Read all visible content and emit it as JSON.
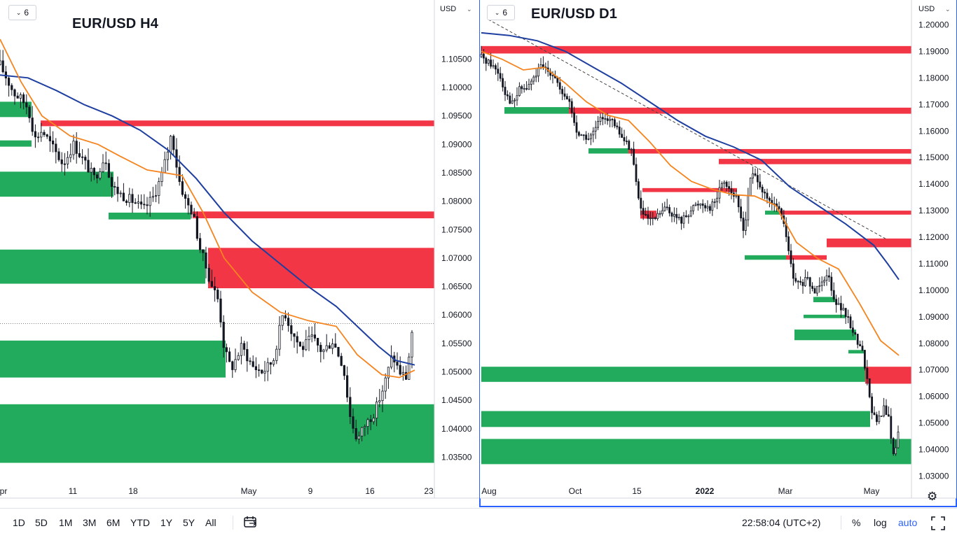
{
  "chart_data": [
    {
      "type": "candlestick",
      "title": "EUR/USD H4",
      "currency": "USD",
      "interval_badge": "6",
      "y_ticks": [
        "1.10500",
        "1.10000",
        "1.09500",
        "1.09000",
        "1.08500",
        "1.08000",
        "1.07500",
        "1.07000",
        "1.06500",
        "1.06000",
        "1.05500",
        "1.05000",
        "1.04500",
        "1.04000",
        "1.03500"
      ],
      "x_ticks": [
        "pr",
        "11",
        "18",
        "May",
        "9",
        "16",
        "23"
      ],
      "ylim": [
        1.0305,
        1.1085
      ],
      "close_points": [
        [
          0,
          1.104
        ],
        [
          10,
          1.1015
        ],
        [
          20,
          1.099
        ],
        [
          30,
          1.098
        ],
        [
          40,
          1.0965
        ],
        [
          50,
          1.091
        ],
        [
          60,
          1.0925
        ],
        [
          75,
          1.0895
        ],
        [
          90,
          1.0865
        ],
        [
          105,
          1.09
        ],
        [
          120,
          1.087
        ],
        [
          135,
          1.084
        ],
        [
          150,
          1.088
        ],
        [
          160,
          1.0825
        ],
        [
          175,
          1.081
        ],
        [
          190,
          1.08
        ],
        [
          205,
          1.0785
        ],
        [
          220,
          1.081
        ],
        [
          232,
          1.085
        ],
        [
          245,
          1.092
        ],
        [
          255,
          1.084
        ],
        [
          265,
          1.08
        ],
        [
          275,
          1.078
        ],
        [
          285,
          1.072
        ],
        [
          300,
          1.066
        ],
        [
          312,
          1.0625
        ],
        [
          320,
          1.054
        ],
        [
          330,
          1.0505
        ],
        [
          345,
          1.0545
        ],
        [
          360,
          1.051
        ],
        [
          375,
          1.05
        ],
        [
          390,
          1.052
        ],
        [
          405,
          1.061
        ],
        [
          415,
          1.0575
        ],
        [
          430,
          1.054
        ],
        [
          445,
          1.056
        ],
        [
          460,
          1.0535
        ],
        [
          475,
          1.0555
        ],
        [
          490,
          1.051
        ],
        [
          500,
          1.042
        ],
        [
          510,
          1.038
        ],
        [
          520,
          1.0405
        ],
        [
          535,
          1.043
        ],
        [
          548,
          1.0475
        ],
        [
          560,
          1.053
        ],
        [
          570,
          1.05
        ],
        [
          580,
          1.049
        ],
        [
          588,
          1.057
        ],
        [
          592,
          1.0605
        ]
      ],
      "ema_fast": [
        [
          0,
          1.1085
        ],
        [
          30,
          1.101
        ],
        [
          60,
          1.095
        ],
        [
          100,
          1.0915
        ],
        [
          140,
          1.09
        ],
        [
          170,
          1.088
        ],
        [
          210,
          1.0855
        ],
        [
          260,
          1.0845
        ],
        [
          290,
          1.078
        ],
        [
          320,
          1.07
        ],
        [
          360,
          1.064
        ],
        [
          400,
          1.0605
        ],
        [
          440,
          1.059
        ],
        [
          480,
          1.058
        ],
        [
          510,
          1.053
        ],
        [
          545,
          1.0495
        ],
        [
          570,
          1.049
        ],
        [
          592,
          1.0503
        ]
      ],
      "ema_slow": [
        [
          0,
          1.1022
        ],
        [
          40,
          1.1017
        ],
        [
          80,
          1.0995
        ],
        [
          120,
          1.097
        ],
        [
          160,
          1.095
        ],
        [
          200,
          1.0925
        ],
        [
          240,
          1.089
        ],
        [
          280,
          1.084
        ],
        [
          320,
          1.078
        ],
        [
          360,
          1.073
        ],
        [
          400,
          1.069
        ],
        [
          440,
          1.065
        ],
        [
          480,
          1.0615
        ],
        [
          510,
          1.058
        ],
        [
          540,
          1.0545
        ],
        [
          565,
          1.052
        ],
        [
          592,
          1.0512
        ]
      ],
      "price_line": 1.0585,
      "supply_zones": [
        {
          "x0": 58,
          "x1": 620,
          "y0": 1.0942,
          "y1": 1.0932
        },
        {
          "x0": 275,
          "x1": 620,
          "y0": 1.0782,
          "y1": 1.077
        },
        {
          "x0": 297,
          "x1": 620,
          "y0": 1.0718,
          "y1": 1.0647
        }
      ],
      "demand_zones": [
        {
          "x0": 0,
          "x1": 45,
          "y0": 1.0975,
          "y1": 1.0948
        },
        {
          "x0": 0,
          "x1": 45,
          "y0": 1.0907,
          "y1": 1.0896
        },
        {
          "x0": 0,
          "x1": 162,
          "y0": 1.0852,
          "y1": 1.0808
        },
        {
          "x0": 155,
          "x1": 272,
          "y0": 1.078,
          "y1": 1.0768
        },
        {
          "x0": 0,
          "x1": 293,
          "y0": 1.0715,
          "y1": 1.0655
        },
        {
          "x0": 0,
          "x1": 322,
          "y0": 1.0555,
          "y1": 1.049
        },
        {
          "x0": 0,
          "x1": 620,
          "y0": 1.0443,
          "y1": 1.034
        }
      ]
    },
    {
      "type": "candlestick",
      "title": "EUR/USD D1",
      "currency": "USD",
      "interval_badge": "6",
      "y_ticks": [
        "1.20000",
        "1.19000",
        "1.18000",
        "1.17000",
        "1.16000",
        "1.15000",
        "1.14000",
        "1.13000",
        "1.12000",
        "1.11000",
        "1.10000",
        "1.09000",
        "1.08000",
        "1.07000",
        "1.06000",
        "1.05000",
        "1.04000",
        "1.03000"
      ],
      "x_ticks": [
        "Aug",
        "Oct",
        "15",
        "2022",
        "Mar",
        "May"
      ],
      "ylim": [
        1.0275,
        1.2025
      ],
      "close_points": [
        [
          0,
          1.188
        ],
        [
          15,
          1.185
        ],
        [
          25,
          1.182
        ],
        [
          35,
          1.174
        ],
        [
          45,
          1.17
        ],
        [
          55,
          1.176
        ],
        [
          65,
          1.176
        ],
        [
          75,
          1.18
        ],
        [
          85,
          1.184
        ],
        [
          95,
          1.183
        ],
        [
          105,
          1.181
        ],
        [
          115,
          1.173
        ],
        [
          125,
          1.172
        ],
        [
          135,
          1.16
        ],
        [
          145,
          1.158
        ],
        [
          155,
          1.157
        ],
        [
          165,
          1.162
        ],
        [
          175,
          1.166
        ],
        [
          185,
          1.164
        ],
        [
          195,
          1.16
        ],
        [
          205,
          1.156
        ],
        [
          215,
          1.153
        ],
        [
          220,
          1.142
        ],
        [
          228,
          1.13
        ],
        [
          235,
          1.127
        ],
        [
          245,
          1.126
        ],
        [
          255,
          1.129
        ],
        [
          265,
          1.131
        ],
        [
          275,
          1.128
        ],
        [
          285,
          1.126
        ],
        [
          295,
          1.129
        ],
        [
          305,
          1.132
        ],
        [
          315,
          1.133
        ],
        [
          325,
          1.131
        ],
        [
          335,
          1.134
        ],
        [
          345,
          1.142
        ],
        [
          355,
          1.138
        ],
        [
          365,
          1.134
        ],
        [
          375,
          1.122
        ],
        [
          385,
          1.144
        ],
        [
          395,
          1.142
        ],
        [
          405,
          1.135
        ],
        [
          415,
          1.132
        ],
        [
          425,
          1.131
        ],
        [
          435,
          1.121
        ],
        [
          445,
          1.104
        ],
        [
          455,
          1.102
        ],
        [
          465,
          1.104
        ],
        [
          475,
          1.099
        ],
        [
          485,
          1.104
        ],
        [
          495,
          1.106
        ],
        [
          505,
          1.096
        ],
        [
          515,
          1.093
        ],
        [
          525,
          1.088
        ],
        [
          535,
          1.082
        ],
        [
          545,
          1.076
        ],
        [
          552,
          1.064
        ],
        [
          558,
          1.054
        ],
        [
          565,
          1.05
        ],
        [
          575,
          1.056
        ],
        [
          582,
          1.051
        ],
        [
          588,
          1.038
        ],
        [
          593,
          1.042
        ],
        [
          598,
          1.056
        ]
      ],
      "ema_fast": [
        [
          0,
          1.19
        ],
        [
          30,
          1.187
        ],
        [
          60,
          1.183
        ],
        [
          90,
          1.184
        ],
        [
          120,
          1.178
        ],
        [
          150,
          1.171
        ],
        [
          180,
          1.166
        ],
        [
          210,
          1.164
        ],
        [
          240,
          1.156
        ],
        [
          270,
          1.147
        ],
        [
          300,
          1.141
        ],
        [
          330,
          1.138
        ],
        [
          360,
          1.136
        ],
        [
          390,
          1.1355
        ],
        [
          420,
          1.132
        ],
        [
          450,
          1.118
        ],
        [
          480,
          1.112
        ],
        [
          510,
          1.108
        ],
        [
          540,
          1.095
        ],
        [
          570,
          1.081
        ],
        [
          596,
          1.0755
        ]
      ],
      "ema_slow": [
        [
          0,
          1.197
        ],
        [
          40,
          1.196
        ],
        [
          80,
          1.194
        ],
        [
          120,
          1.19
        ],
        [
          160,
          1.184
        ],
        [
          200,
          1.178
        ],
        [
          240,
          1.171
        ],
        [
          280,
          1.164
        ],
        [
          320,
          1.158
        ],
        [
          360,
          1.154
        ],
        [
          400,
          1.149
        ],
        [
          440,
          1.139
        ],
        [
          480,
          1.132
        ],
        [
          520,
          1.125
        ],
        [
          560,
          1.117
        ],
        [
          580,
          1.11
        ],
        [
          596,
          1.104
        ]
      ],
      "trendline": [
        [
          10,
          1.202
        ],
        [
          580,
          1.119
        ]
      ],
      "supply_zones": [
        {
          "x0": 0,
          "x1": 616,
          "y0": 1.192,
          "y1": 1.1892
        },
        {
          "x0": 125,
          "x1": 616,
          "y0": 1.1688,
          "y1": 1.1665
        },
        {
          "x0": 210,
          "x1": 616,
          "y0": 1.1532,
          "y1": 1.1515
        },
        {
          "x0": 339,
          "x1": 616,
          "y0": 1.1495,
          "y1": 1.1475
        },
        {
          "x0": 230,
          "x1": 365,
          "y0": 1.1385,
          "y1": 1.137
        },
        {
          "x0": 425,
          "x1": 616,
          "y0": 1.13,
          "y1": 1.1285
        },
        {
          "x0": 227,
          "x1": 250,
          "y0": 1.13,
          "y1": 1.127
        },
        {
          "x0": 493,
          "x1": 616,
          "y0": 1.1195,
          "y1": 1.1162
        },
        {
          "x0": 435,
          "x1": 493,
          "y0": 1.1132,
          "y1": 1.1115
        },
        {
          "x0": 548,
          "x1": 616,
          "y0": 1.0712,
          "y1": 1.0648
        }
      ],
      "demand_zones": [
        {
          "x0": 33,
          "x1": 125,
          "y0": 1.169,
          "y1": 1.1665
        },
        {
          "x0": 153,
          "x1": 210,
          "y0": 1.1535,
          "y1": 1.1515
        },
        {
          "x0": 405,
          "x1": 425,
          "y0": 1.13,
          "y1": 1.1285
        },
        {
          "x0": 376,
          "x1": 435,
          "y0": 1.1132,
          "y1": 1.1115
        },
        {
          "x0": 474,
          "x1": 505,
          "y0": 1.0975,
          "y1": 1.0955
        },
        {
          "x0": 460,
          "x1": 520,
          "y0": 1.0908,
          "y1": 1.0895
        },
        {
          "x0": 447,
          "x1": 535,
          "y0": 1.0852,
          "y1": 1.0812
        },
        {
          "x0": 524,
          "x1": 548,
          "y0": 1.0775,
          "y1": 1.0762
        },
        {
          "x0": 0,
          "x1": 550,
          "y0": 1.0712,
          "y1": 1.0655
        },
        {
          "x0": 0,
          "x1": 555,
          "y0": 1.0545,
          "y1": 1.0485
        },
        {
          "x0": 0,
          "x1": 616,
          "y0": 1.044,
          "y1": 1.0345
        }
      ]
    }
  ],
  "colors": {
    "supply": "#f23645",
    "demand": "#22ab5c",
    "ema_fast": "#f5841f",
    "ema_slow": "#1e3fa0",
    "candle": "#131722",
    "accent": "#2962ff"
  },
  "toolbar": {
    "ranges": [
      "1D",
      "5D",
      "1M",
      "3M",
      "6M",
      "YTD",
      "1Y",
      "5Y",
      "All"
    ],
    "time": "22:58:04 (UTC+2)",
    "percent": "%",
    "log": "log",
    "auto": "auto"
  }
}
